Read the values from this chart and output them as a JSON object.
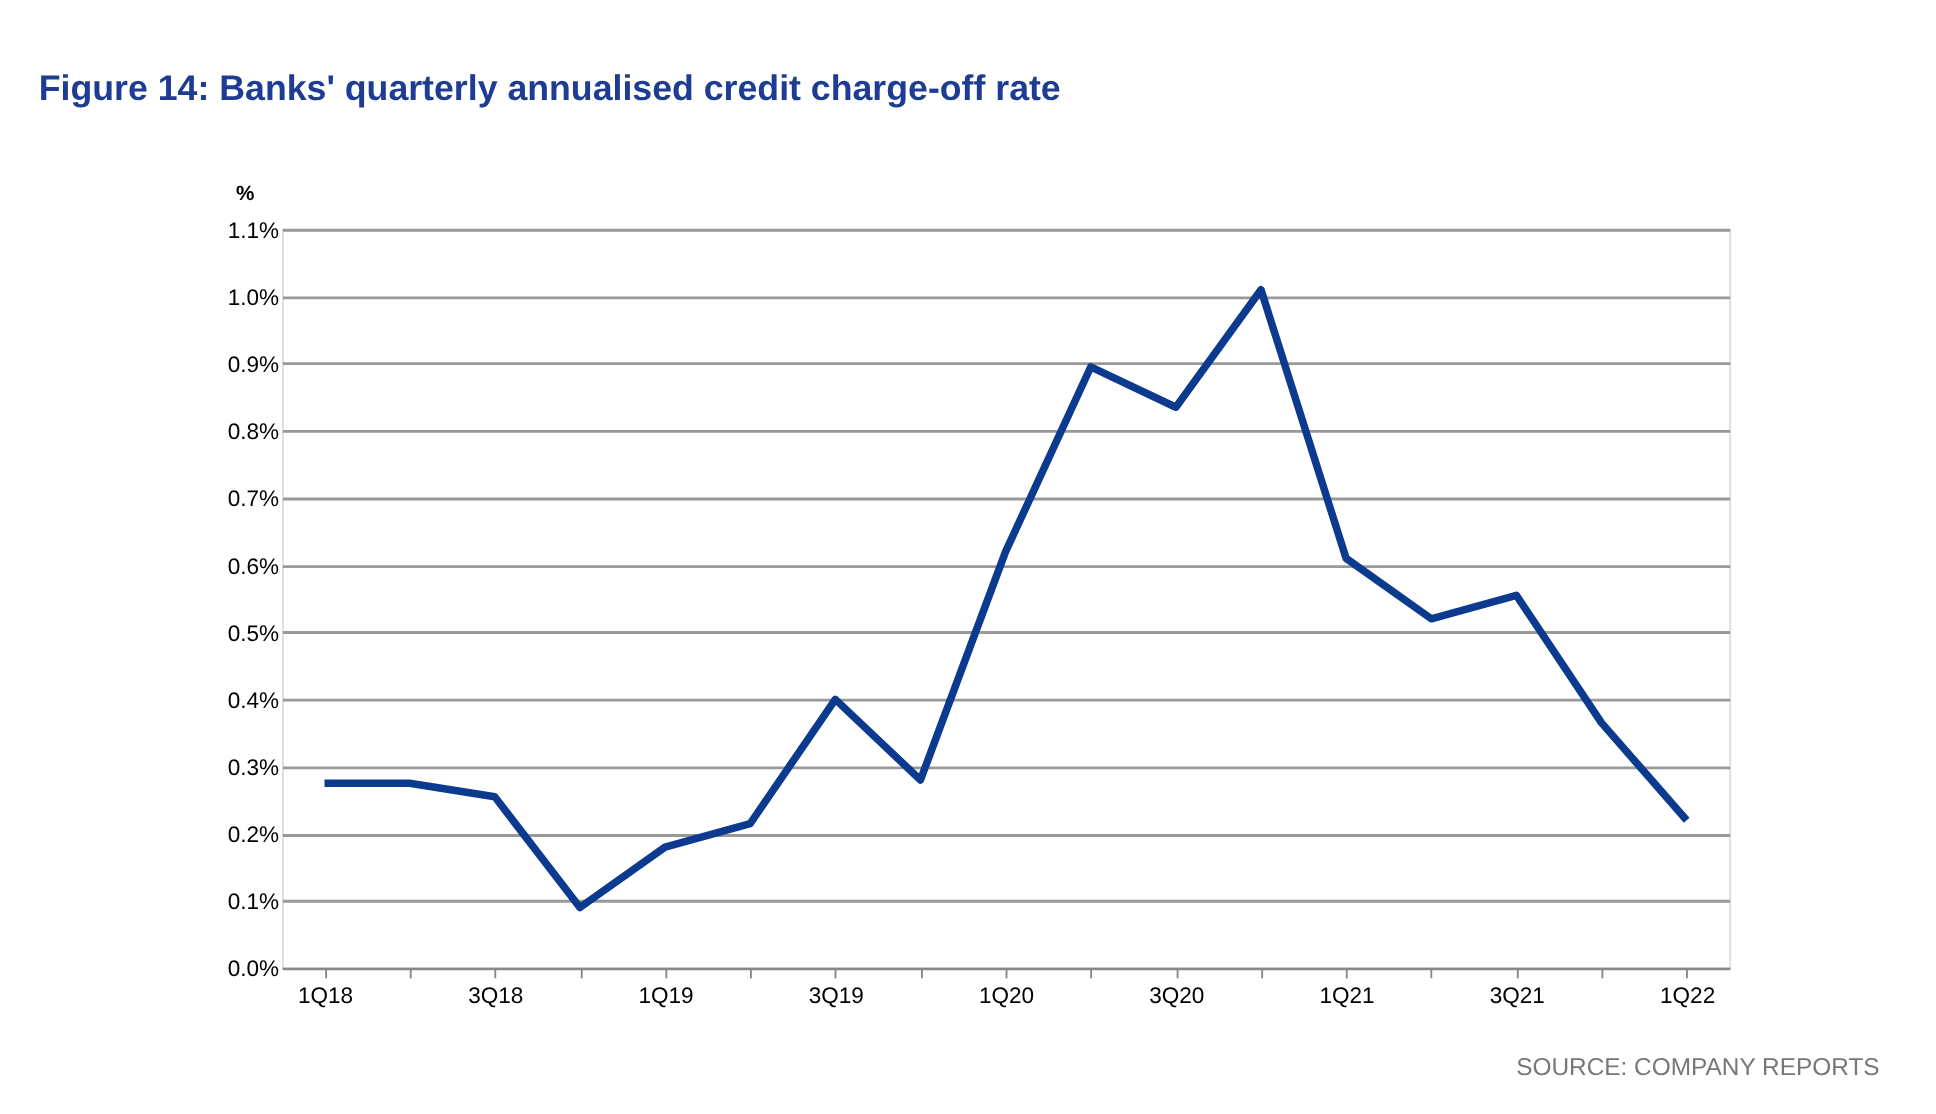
{
  "chart_data": {
    "type": "line",
    "title": "Figure 14: Banks' quarterly annualised credit charge-off rate",
    "ylabel": "%",
    "categories": [
      "1Q18",
      null,
      "3Q18",
      null,
      "1Q19",
      null,
      "3Q19",
      null,
      "1Q20",
      null,
      "3Q20",
      null,
      "1Q21",
      null,
      "3Q21",
      null,
      "1Q22"
    ],
    "series": [
      {
        "color": "#0b3a8f",
        "values": [
          0.275,
          0.275,
          0.255,
          0.09,
          0.18,
          0.215,
          0.4,
          0.28,
          0.62,
          0.895,
          0.835,
          1.01,
          0.61,
          0.52,
          0.555,
          0.365,
          0.22
        ]
      }
    ],
    "ylim": [
      0,
      1.1
    ],
    "yticks": [
      {
        "value": 0,
        "label": "0.0%"
      },
      {
        "value": 0.1,
        "label": "0.1%"
      },
      {
        "value": 0.2,
        "label": "0.2%"
      },
      {
        "value": 0.3,
        "label": "0.3%"
      },
      {
        "value": 0.4,
        "label": "0.4%"
      },
      {
        "value": 0.5,
        "label": "0.5%"
      },
      {
        "value": 0.6,
        "label": "0.6%"
      },
      {
        "value": 0.7,
        "label": "0.7%"
      },
      {
        "value": 0.8,
        "label": "0.8%"
      },
      {
        "value": 0.9,
        "label": "0.9%"
      },
      {
        "value": 1.0,
        "label": "1.0%"
      },
      {
        "value": 1.1,
        "label": "1.1%"
      }
    ],
    "grid": "y",
    "marker": "none",
    "line_style": "solid",
    "annotations": [
      "SOURCE: COMPANY REPORTS"
    ]
  }
}
